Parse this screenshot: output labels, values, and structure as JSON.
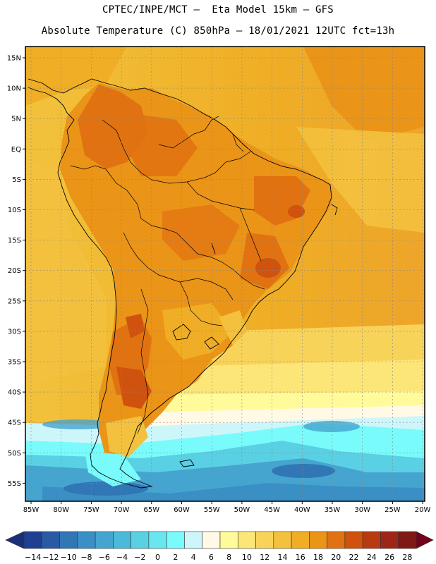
{
  "header": {
    "line1": "CPTEC/INPE/MCT –  Eta Model 15km – GFS",
    "line2": "Absolute Temperature (C) 850hPa – 18/01/2021 12UTC fct=13h"
  },
  "map": {
    "lat_ticks": [
      "15N",
      "10N",
      "5N",
      "EQ",
      "5S",
      "10S",
      "15S",
      "20S",
      "25S",
      "30S",
      "35S",
      "40S",
      "45S",
      "50S",
      "55S"
    ],
    "lon_ticks": [
      "85W",
      "80W",
      "75W",
      "70W",
      "65W",
      "60W",
      "55W",
      "50W",
      "45W",
      "40W",
      "35W",
      "30W",
      "25W",
      "20W"
    ]
  },
  "colorbar": {
    "labels": [
      "-14",
      "-12",
      "-10",
      "-8",
      "-6",
      "-4",
      "-2",
      "0",
      "2",
      "4",
      "6",
      "8",
      "10",
      "12",
      "14",
      "16",
      "18",
      "20",
      "22",
      "24",
      "26",
      "28"
    ],
    "colors": [
      "#1f3f92",
      "#2a5aa5",
      "#3176b5",
      "#3a8fc4",
      "#45a5cf",
      "#4bbad8",
      "#5ad0e4",
      "#6ae6ef",
      "#79fbfb",
      "#cdf6fb",
      "#fff9e6",
      "#fffb9a",
      "#fde678",
      "#f8d35a",
      "#f3c13e",
      "#efae25",
      "#ea9418",
      "#e17211",
      "#cf530e",
      "#b83a10",
      "#9e2616",
      "#7e1915"
    ],
    "under_color": "#1a2f78",
    "over_color": "#74001a"
  }
}
